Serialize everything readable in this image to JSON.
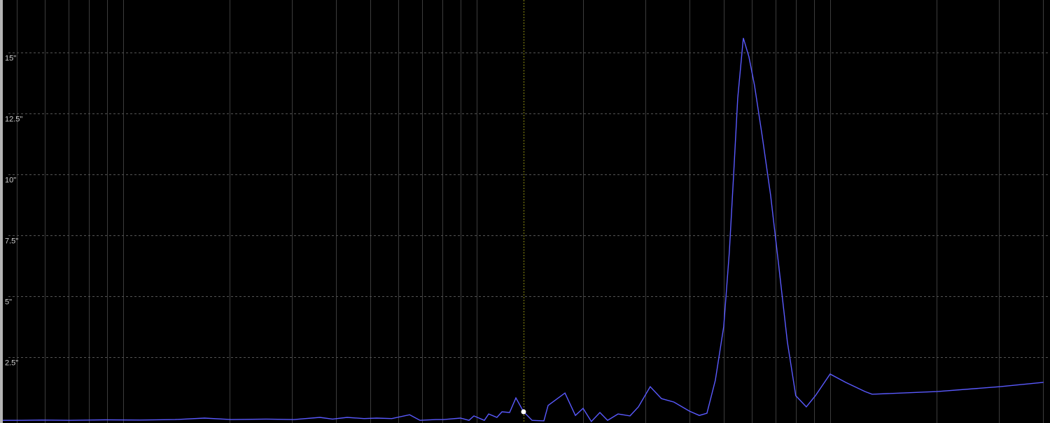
{
  "chart_data": {
    "type": "line",
    "title": "",
    "xlabel": "",
    "ylabel": "",
    "x_scale": "log",
    "xlim": [
      4.56,
      4190
    ],
    "ylim": [
      -0.2,
      17.16
    ],
    "grid": {
      "vertical": true,
      "horizontal": true,
      "horizontal_style": "dashed"
    },
    "y_ticks": [
      {
        "value": 2.5,
        "label": "2.5\""
      },
      {
        "value": 5,
        "label": "5\""
      },
      {
        "value": 7.5,
        "label": "7.5\""
      },
      {
        "value": 10,
        "label": "10\""
      },
      {
        "value": 12.5,
        "label": "12.5\""
      },
      {
        "value": 15,
        "label": "15\""
      }
    ],
    "series": [
      {
        "color": "#5a5aff",
        "points": [
          [
            4.56,
            -0.09
          ],
          [
            5.14,
            -0.09
          ],
          [
            5.89,
            -0.08
          ],
          [
            7.07,
            -0.09
          ],
          [
            8.88,
            -0.07
          ],
          [
            11.16,
            -0.08
          ],
          [
            14.0,
            -0.06
          ],
          [
            16.97,
            0.0
          ],
          [
            20.2,
            -0.06
          ],
          [
            25.3,
            -0.04
          ],
          [
            30.4,
            -0.06
          ],
          [
            36.0,
            0.03
          ],
          [
            39.1,
            -0.04
          ],
          [
            43.0,
            0.03
          ],
          [
            48.0,
            -0.02
          ],
          [
            52.1,
            0.0
          ],
          [
            57.5,
            -0.02
          ],
          [
            64.6,
            0.14
          ],
          [
            69.1,
            -0.09
          ],
          [
            76.8,
            -0.06
          ],
          [
            80.4,
            -0.06
          ],
          [
            90.0,
            0.0
          ],
          [
            95.1,
            -0.09
          ],
          [
            98.2,
            0.09
          ],
          [
            105.1,
            -0.09
          ],
          [
            108.1,
            0.17
          ],
          [
            114.1,
            0.03
          ],
          [
            117.9,
            0.26
          ],
          [
            123.9,
            0.23
          ],
          [
            129.1,
            0.83
          ],
          [
            135.7,
            0.26
          ],
          [
            143.4,
            -0.09
          ],
          [
            154.9,
            -0.11
          ],
          [
            159.2,
            0.52
          ],
          [
            177.7,
            1.03
          ],
          [
            190.2,
            0.11
          ],
          [
            200,
            0.4
          ],
          [
            211.1,
            -0.14
          ],
          [
            223.1,
            0.23
          ],
          [
            234.6,
            -0.09
          ],
          [
            251.1,
            0.17
          ],
          [
            271.5,
            0.09
          ],
          [
            286.7,
            0.46
          ],
          [
            309.8,
            1.29
          ],
          [
            333.3,
            0.8
          ],
          [
            361.6,
            0.66
          ],
          [
            399.6,
            0.29
          ],
          [
            426.4,
            0.11
          ],
          [
            448.2,
            0.2
          ],
          [
            473.3,
            1.55
          ],
          [
            500,
            3.76
          ],
          [
            518.6,
            6.81
          ],
          [
            533.1,
            9.97
          ],
          [
            547.7,
            13.13
          ],
          [
            568.1,
            15.6
          ],
          [
            589.2,
            14.83
          ],
          [
            611.1,
            13.65
          ],
          [
            642.8,
            11.55
          ],
          [
            678.7,
            9.14
          ],
          [
            716.6,
            6.18
          ],
          [
            756.8,
            3.13
          ],
          [
            799.3,
            0.92
          ],
          [
            856.3,
            0.46
          ],
          [
            908.9,
            0.92
          ],
          [
            1000,
            1.81
          ],
          [
            1105.6,
            1.47
          ],
          [
            1256,
            1.09
          ],
          [
            1315,
            0.98
          ],
          [
            2009,
            1.09
          ],
          [
            3013,
            1.29
          ],
          [
            4018,
            1.47
          ]
        ]
      }
    ],
    "cursor": {
      "x": 135.7,
      "y": 0.26,
      "color": "#8a8a10"
    },
    "colors": {
      "background": "#000000",
      "grid_vertical": "#3c3c3c",
      "grid_horizontal": "#555555",
      "marker": "#ffffff"
    }
  }
}
